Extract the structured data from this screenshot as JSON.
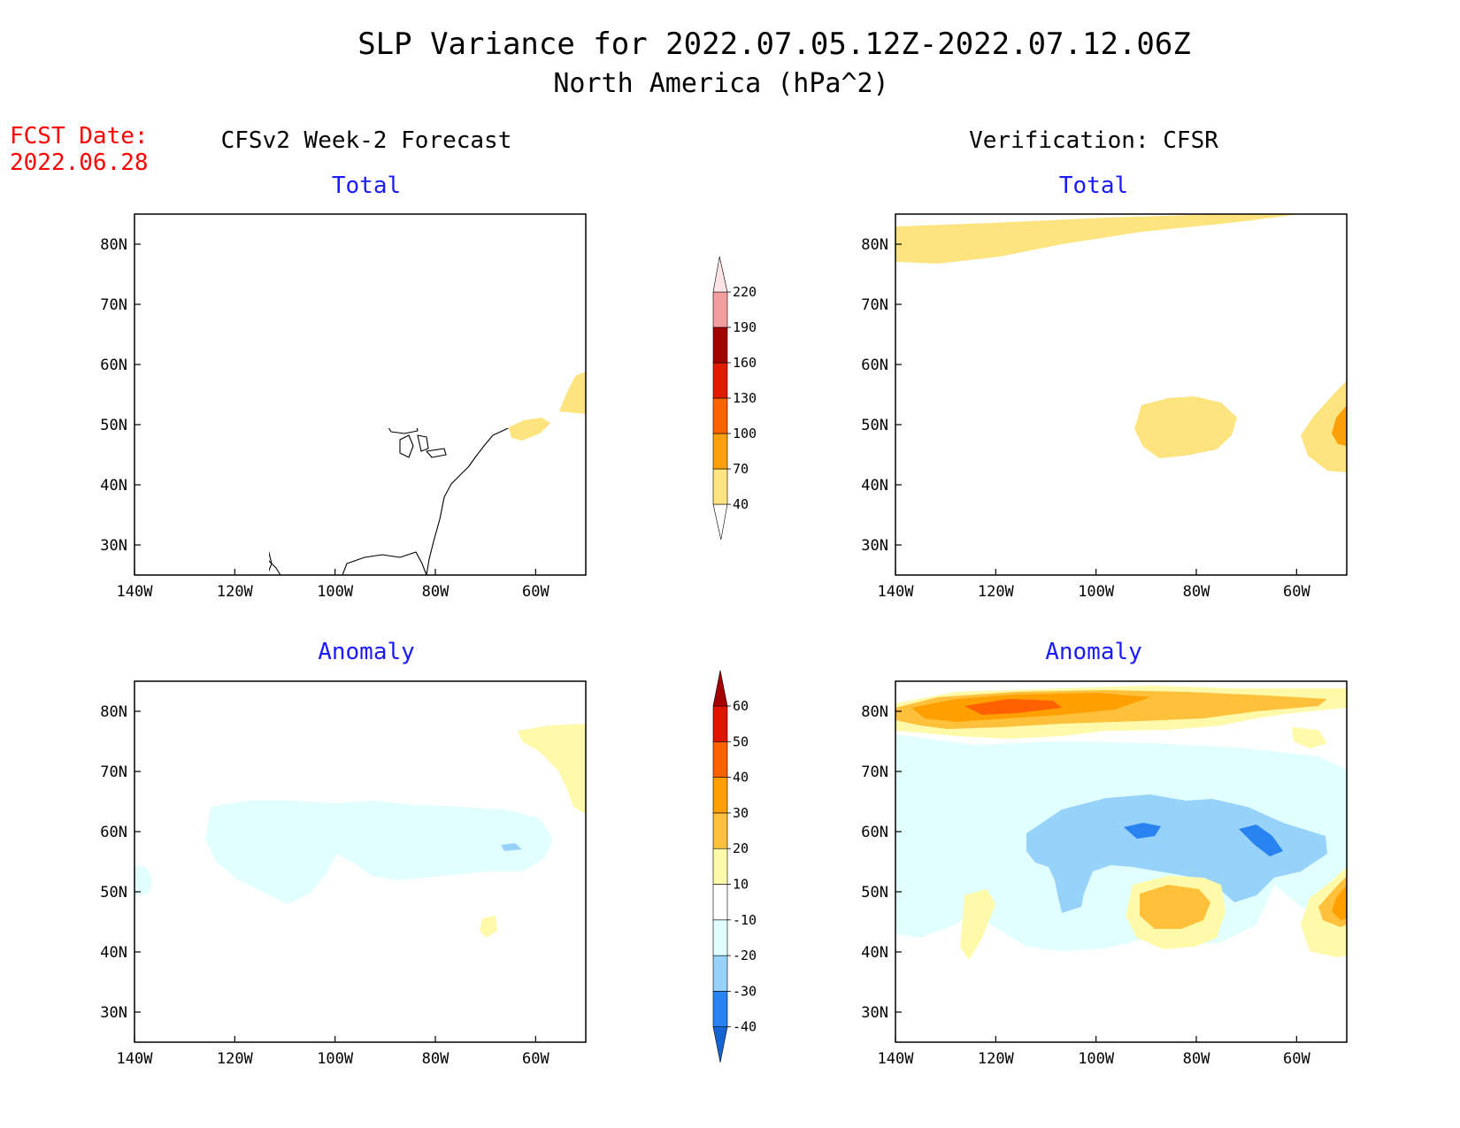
{
  "title": {
    "line1": "SLP Variance for 2022.07.05.12Z-2022.07.12.06Z",
    "line2": "North America (hPa^2)"
  },
  "fcst_date": {
    "label": "FCST Date:",
    "value": "2022.06.28"
  },
  "columns": {
    "left": "CFSv2 Week-2 Forecast",
    "right": "Verification: CFSR"
  },
  "panel_titles": {
    "total": "Total",
    "anomaly": "Anomaly"
  },
  "axes": {
    "lat_labels": [
      "80N",
      "70N",
      "60N",
      "50N",
      "40N",
      "30N"
    ],
    "lat_values": [
      80,
      70,
      60,
      50,
      40,
      30
    ],
    "lon_labels": [
      "140W",
      "120W",
      "100W",
      "80W",
      "60W"
    ],
    "lon_values": [
      -140,
      -120,
      -100,
      -80,
      -60
    ],
    "lon_range": [
      -140,
      -50
    ],
    "lat_range": [
      25,
      85
    ]
  },
  "total_colorbar": {
    "levels": [
      40,
      70,
      100,
      130,
      160,
      190,
      220
    ],
    "labels": [
      "40",
      "70",
      "100",
      "130",
      "160",
      "190",
      "220"
    ],
    "colors": [
      "#fde47f",
      "#fda10b",
      "#fc6200",
      "#e21b00",
      "#a50000",
      "#f29e9e",
      "#fde4e4"
    ]
  },
  "anomaly_colorbar": {
    "levels": [
      -40,
      -30,
      -20,
      -10,
      10,
      20,
      30,
      40,
      50,
      60
    ],
    "labels": [
      "-40",
      "-30",
      "-20",
      "-10",
      "10",
      "20",
      "30",
      "40",
      "50",
      "60"
    ],
    "colors": [
      "#1464d2",
      "#2882f0",
      "#96d2fa",
      "#e1ffff",
      "#ffffff",
      "#fffaaa",
      "#ffc03c",
      "#ffa000",
      "#ff6000",
      "#e11400",
      "#a50000"
    ]
  },
  "colors": {
    "title": "#000000",
    "subtitle": "#1a1aff",
    "fcst": "#ff0000"
  }
}
